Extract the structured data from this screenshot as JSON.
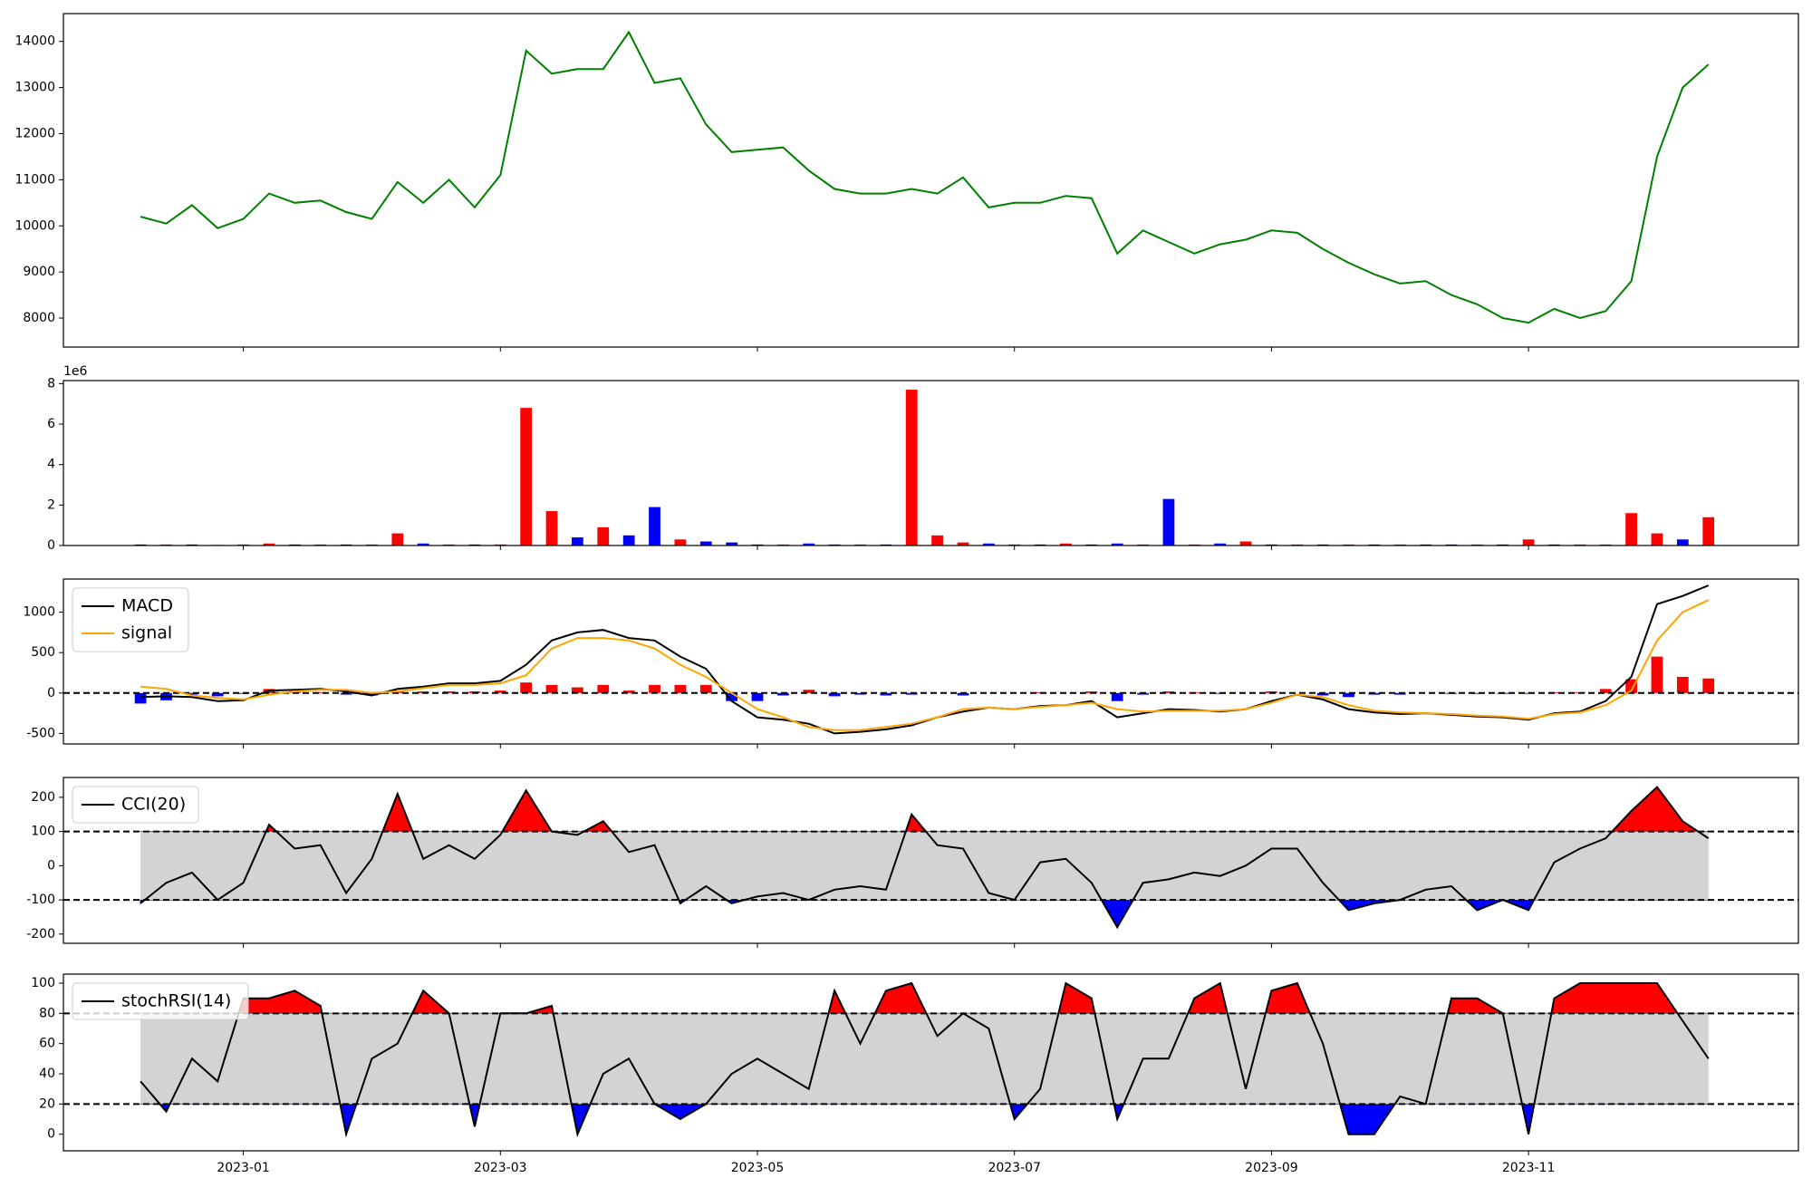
{
  "chart_data": [
    {
      "type": "line",
      "x": [
        0.2,
        0.4,
        0.6,
        0.8,
        1,
        1.2,
        1.4,
        1.6,
        1.8,
        2,
        2.2,
        2.4,
        2.6,
        2.8,
        3,
        3.2,
        3.4,
        3.6,
        3.8,
        4,
        4.2,
        4.4,
        4.6,
        4.8,
        5,
        5.2,
        5.4,
        5.6,
        5.8,
        6,
        6.2,
        6.4,
        6.6,
        6.8,
        7,
        7.2,
        7.4,
        7.6,
        7.8,
        8,
        8.2,
        8.4,
        8.6,
        8.8,
        9,
        9.2,
        9.4,
        9.6,
        9.8,
        10,
        10.2,
        10.4,
        10.6,
        10.8,
        11,
        11.2,
        11.4,
        11.6,
        11.8,
        12,
        12.2,
        12.4
      ],
      "series": [
        {
          "color": "green",
          "values": [
            10200,
            10050,
            10450,
            9950,
            10150,
            10700,
            10500,
            10550,
            10300,
            10150,
            10950,
            10500,
            11000,
            10400,
            11100,
            13800,
            13300,
            13400,
            13400,
            14200,
            13100,
            13200,
            12200,
            11600,
            11650,
            11700,
            11200,
            10800,
            10700,
            10700,
            10800,
            10700,
            11050,
            10400,
            10500,
            10500,
            10650,
            10600,
            9400,
            9900,
            9650,
            9400,
            9600,
            9700,
            9900,
            9850,
            9500,
            9200,
            8950,
            8750,
            8800,
            8500,
            8300,
            8000,
            7900,
            8200,
            8000,
            8150,
            8800,
            11500,
            13000,
            13500
          ]
        }
      ],
      "xlim": [
        -0.4,
        13.1
      ],
      "ylim": [
        7372,
        14603
      ],
      "yticks": [
        8000,
        9000,
        10000,
        11000,
        12000,
        13000,
        14000
      ]
    },
    {
      "type": "bar",
      "offset_label": "1e6",
      "x": [
        0.2,
        0.4,
        0.6,
        0.8,
        1,
        1.2,
        1.4,
        1.6,
        1.8,
        2,
        2.2,
        2.4,
        2.6,
        2.8,
        3,
        3.2,
        3.4,
        3.6,
        3.8,
        4,
        4.2,
        4.4,
        4.6,
        4.8,
        5,
        5.2,
        5.4,
        5.6,
        5.8,
        6,
        6.2,
        6.4,
        6.6,
        6.8,
        7,
        7.2,
        7.4,
        7.6,
        7.8,
        8,
        8.2,
        8.4,
        8.6,
        8.8,
        9,
        9.2,
        9.4,
        9.6,
        9.8,
        10,
        10.2,
        10.4,
        10.6,
        10.8,
        11,
        11.2,
        11.4,
        11.6,
        11.8,
        12,
        12.2,
        12.4
      ],
      "values": [
        0.05,
        0.05,
        0.05,
        0.03,
        0.05,
        0.1,
        0.05,
        0.05,
        0.05,
        0.05,
        0.6,
        0.1,
        0.05,
        0.05,
        0.05,
        6.8,
        1.7,
        0.4,
        0.9,
        0.5,
        1.9,
        0.3,
        0.2,
        0.15,
        0.05,
        0.05,
        0.1,
        0.05,
        0.05,
        0.05,
        7.7,
        0.5,
        0.15,
        0.1,
        0.05,
        0.05,
        0.1,
        0.05,
        0.1,
        0.05,
        2.3,
        0.05,
        0.1,
        0.2,
        0.05,
        0.05,
        0.05,
        0.05,
        0.05,
        0.05,
        0.05,
        0.05,
        0.05,
        0.05,
        0.3,
        0.05,
        0.05,
        0.05,
        1.6,
        0.6,
        0.3,
        1.4
      ],
      "colors": [
        "blue",
        "red",
        "blue",
        "red",
        "red",
        "red",
        "blue",
        "red",
        "blue",
        "red",
        "red",
        "blue",
        "red",
        "blue",
        "red",
        "red",
        "red",
        "blue",
        "red",
        "blue",
        "blue",
        "red",
        "blue",
        "blue",
        "blue",
        "red",
        "blue",
        "blue",
        "red",
        "blue",
        "red",
        "red",
        "red",
        "blue",
        "red",
        "blue",
        "red",
        "blue",
        "blue",
        "red",
        "blue",
        "red",
        "blue",
        "red",
        "blue",
        "red",
        "blue",
        "red",
        "blue",
        "red",
        "blue",
        "blue",
        "red",
        "blue",
        "red",
        "blue",
        "red",
        "red",
        "red",
        "red",
        "blue",
        "red"
      ],
      "xlim": [
        -0.4,
        13.1
      ],
      "ylim": [
        0,
        8.15
      ],
      "yticks": [
        0,
        2,
        4,
        6,
        8
      ]
    },
    {
      "type": "line",
      "x": [
        0.2,
        0.4,
        0.6,
        0.8,
        1,
        1.2,
        1.4,
        1.6,
        1.8,
        2,
        2.2,
        2.4,
        2.6,
        2.8,
        3,
        3.2,
        3.4,
        3.6,
        3.8,
        4,
        4.2,
        4.4,
        4.6,
        4.8,
        5,
        5.2,
        5.4,
        5.6,
        5.8,
        6,
        6.2,
        6.4,
        6.6,
        6.8,
        7,
        7.2,
        7.4,
        7.6,
        7.8,
        8,
        8.2,
        8.4,
        8.6,
        8.8,
        9,
        9.2,
        9.4,
        9.6,
        9.8,
        10,
        10.2,
        10.4,
        10.6,
        10.8,
        11,
        11.2,
        11.4,
        11.6,
        11.8,
        12,
        12.2,
        12.4
      ],
      "series": [
        {
          "name": "MACD",
          "color": "black",
          "values": [
            -50,
            -40,
            -50,
            -100,
            -90,
            30,
            40,
            50,
            20,
            -30,
            50,
            80,
            120,
            120,
            150,
            350,
            650,
            750,
            780,
            680,
            650,
            450,
            300,
            -100,
            -300,
            -330,
            -380,
            -500,
            -480,
            -450,
            -400,
            -300,
            -230,
            -180,
            -200,
            -160,
            -150,
            -100,
            -300,
            -250,
            -200,
            -210,
            -230,
            -200,
            -100,
            -20,
            -80,
            -200,
            -240,
            -260,
            -250,
            -270,
            -290,
            -300,
            -330,
            -250,
            -230,
            -100,
            200,
            1100,
            1200,
            1330
          ]
        },
        {
          "name": "signal",
          "color": "orange",
          "values": [
            80,
            50,
            -30,
            -60,
            -80,
            -20,
            20,
            40,
            40,
            0,
            20,
            60,
            100,
            100,
            120,
            220,
            550,
            680,
            680,
            650,
            550,
            350,
            200,
            0,
            -200,
            -300,
            -420,
            -460,
            -460,
            -420,
            -380,
            -300,
            -200,
            -180,
            -200,
            -170,
            -150,
            -120,
            -200,
            -230,
            -220,
            -220,
            -220,
            -200,
            -120,
            -20,
            -50,
            -150,
            -220,
            -240,
            -250,
            -260,
            -280,
            -290,
            -320,
            -260,
            -240,
            -150,
            30,
            650,
            1000,
            1150
          ]
        }
      ],
      "bars": {
        "positive_color": "red",
        "negative_color": "blue",
        "values": [
          -130,
          -90,
          -20,
          -40,
          -10,
          50,
          20,
          10,
          -20,
          -30,
          30,
          20,
          20,
          20,
          30,
          130,
          100,
          70,
          100,
          30,
          100,
          100,
          100,
          -100,
          -100,
          -30,
          40,
          -40,
          -20,
          -30,
          -20,
          0,
          -30,
          0,
          0,
          10,
          0,
          20,
          -100,
          -20,
          20,
          10,
          -10,
          0,
          20,
          0,
          -30,
          -50,
          -20,
          -20,
          0,
          -10,
          -10,
          -10,
          -10,
          10,
          10,
          50,
          170,
          450,
          200,
          180
        ]
      },
      "hlines": [
        0
      ],
      "xlim": [
        -0.4,
        13.1
      ],
      "ylim": [
        -630,
        1410
      ],
      "yticks": [
        -500,
        0,
        500,
        1000
      ],
      "legend": "upper left"
    },
    {
      "type": "band",
      "x": [
        0.2,
        0.4,
        0.6,
        0.8,
        1,
        1.2,
        1.4,
        1.6,
        1.8,
        2,
        2.2,
        2.4,
        2.6,
        2.8,
        3,
        3.2,
        3.4,
        3.6,
        3.8,
        4,
        4.2,
        4.4,
        4.6,
        4.8,
        5,
        5.2,
        5.4,
        5.6,
        5.8,
        6,
        6.2,
        6.4,
        6.6,
        6.8,
        7,
        7.2,
        7.4,
        7.6,
        7.8,
        8,
        8.2,
        8.4,
        8.6,
        8.8,
        9,
        9.2,
        9.4,
        9.6,
        9.8,
        10,
        10.2,
        10.4,
        10.6,
        10.8,
        11,
        11.2,
        11.4,
        11.6,
        11.8,
        12,
        12.2,
        12.4
      ],
      "series": [
        {
          "name": "CCI(20)",
          "color": "black",
          "values": [
            -110,
            -50,
            -20,
            -100,
            -50,
            120,
            50,
            60,
            -80,
            20,
            210,
            20,
            60,
            20,
            90,
            220,
            100,
            90,
            130,
            40,
            60,
            -110,
            -60,
            -110,
            -90,
            -80,
            -100,
            -70,
            -60,
            -70,
            150,
            60,
            50,
            -80,
            -100,
            10,
            20,
            -50,
            -180,
            -50,
            -40,
            -20,
            -30,
            0,
            50,
            50,
            -50,
            -130,
            -110,
            -100,
            -70,
            -60,
            -130,
            -100,
            -130,
            10,
            50,
            80,
            160,
            230,
            130,
            80
          ]
        }
      ],
      "band": [
        -100,
        100
      ],
      "band_color": "lightgray",
      "above_color": "red",
      "below_color": "blue",
      "xlim": [
        -0.4,
        13.1
      ],
      "ylim": [
        -227,
        258
      ],
      "yticks": [
        -200,
        -100,
        0,
        100,
        200
      ],
      "legend": "upper left"
    },
    {
      "type": "band",
      "x": [
        0.2,
        0.4,
        0.6,
        0.8,
        1,
        1.2,
        1.4,
        1.6,
        1.8,
        2,
        2.2,
        2.4,
        2.6,
        2.8,
        3,
        3.2,
        3.4,
        3.6,
        3.8,
        4,
        4.2,
        4.4,
        4.6,
        4.8,
        5,
        5.2,
        5.4,
        5.6,
        5.8,
        6,
        6.2,
        6.4,
        6.6,
        6.8,
        7,
        7.2,
        7.4,
        7.6,
        7.8,
        8,
        8.2,
        8.4,
        8.6,
        8.8,
        9,
        9.2,
        9.4,
        9.6,
        9.8,
        10,
        10.2,
        10.4,
        10.6,
        10.8,
        11,
        11.2,
        11.4,
        11.6,
        11.8,
        12,
        12.2,
        12.4
      ],
      "series": [
        {
          "name": "stochRSI(14)",
          "color": "black",
          "values": [
            35,
            15,
            50,
            35,
            90,
            90,
            95,
            85,
            0,
            50,
            60,
            95,
            80,
            5,
            80,
            80,
            85,
            0,
            40,
            50,
            20,
            10,
            20,
            40,
            50,
            40,
            30,
            95,
            60,
            95,
            100,
            65,
            80,
            70,
            10,
            30,
            100,
            90,
            10,
            50,
            50,
            90,
            100,
            30,
            95,
            100,
            60,
            0,
            0,
            25,
            20,
            90,
            90,
            80,
            0,
            90,
            100,
            100,
            100,
            100,
            75,
            50
          ]
        }
      ],
      "band": [
        20,
        80
      ],
      "band_color": "lightgray",
      "above_color": "red",
      "below_color": "blue",
      "xlim": [
        -0.4,
        13.1
      ],
      "ylim": [
        -11,
        106
      ],
      "yticks": [
        0,
        20,
        40,
        60,
        80,
        100
      ],
      "legend": "upper left",
      "xticks": [
        {
          "value": 1,
          "label": "2023-01"
        },
        {
          "value": 3,
          "label": "2023-03"
        },
        {
          "value": 5,
          "label": "2023-05"
        },
        {
          "value": 7,
          "label": "2023-07"
        },
        {
          "value": 9,
          "label": "2023-09"
        },
        {
          "value": 11,
          "label": "2023-11"
        }
      ]
    }
  ]
}
